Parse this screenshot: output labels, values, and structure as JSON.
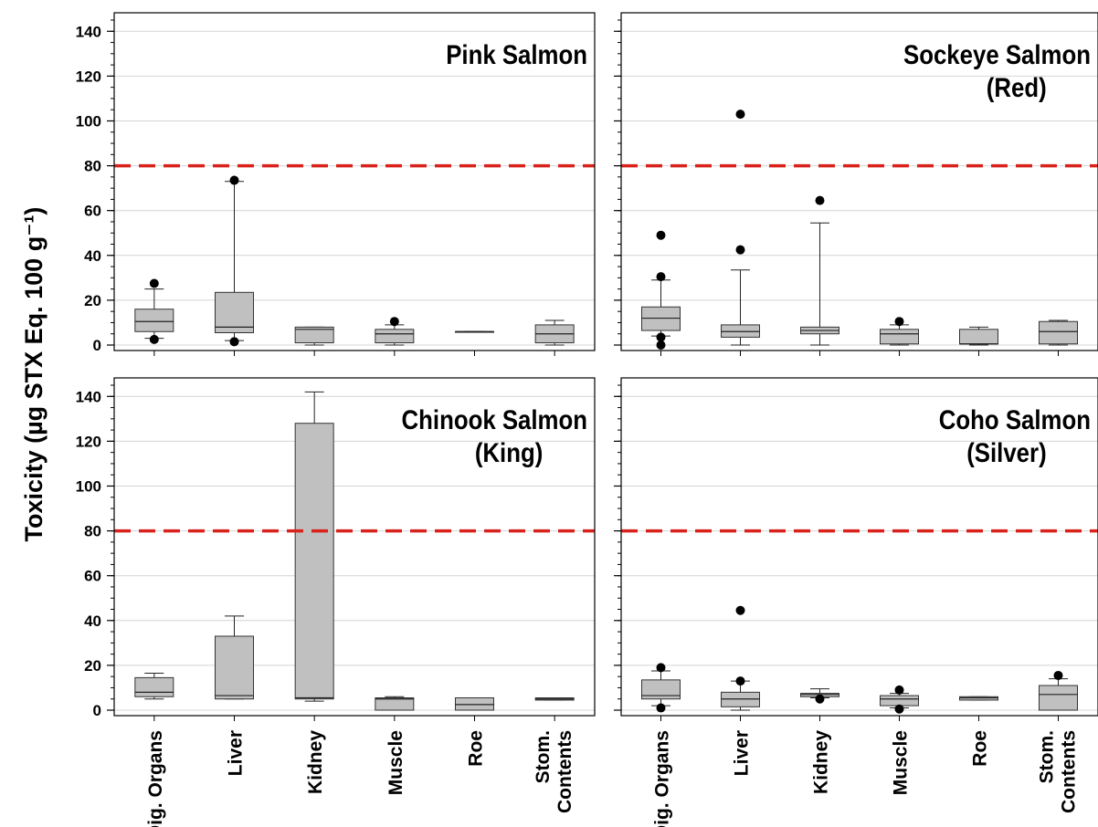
{
  "chart_data": {
    "type": "box",
    "ylabel": "Toxicity (µg STX Eq. 100 g⁻¹)",
    "ylim": [
      0,
      145
    ],
    "yticks": [
      0,
      20,
      40,
      60,
      80,
      100,
      120,
      140
    ],
    "categories": [
      "Dig. Organs",
      "Liver",
      "Kidney",
      "Muscle",
      "Roe",
      "Stom.\nContents"
    ],
    "reference_line": {
      "value": 80,
      "color": "#d9221c",
      "style": "dashed"
    },
    "grid": true,
    "box_fill": "#c0c0c0",
    "panels": [
      {
        "title": "Pink Salmon",
        "boxes": [
          {
            "category": "Dig. Organs",
            "whisker_low": 3,
            "q1": 6,
            "median": 10.5,
            "q3": 16,
            "whisker_high": 25,
            "outliers": [
              27.5,
              2.5
            ]
          },
          {
            "category": "Liver",
            "whisker_low": 2,
            "q1": 5.5,
            "median": 8,
            "q3": 23.5,
            "whisker_high": 73,
            "outliers": [
              73.5,
              1.5
            ]
          },
          {
            "category": "Kidney",
            "whisker_low": 0,
            "q1": 1,
            "median": 7,
            "q3": 8,
            "whisker_high": 8,
            "outliers": []
          },
          {
            "category": "Muscle",
            "whisker_low": 0,
            "q1": 1,
            "median": 5,
            "q3": 7,
            "whisker_high": 9,
            "outliers": [
              10.5
            ]
          },
          {
            "category": "Roe",
            "whisker_low": 6,
            "q1": 6,
            "median": 6,
            "q3": 6,
            "whisker_high": 6,
            "outliers": []
          },
          {
            "category": "Stom.\nContents",
            "whisker_low": 0,
            "q1": 1,
            "median": 5,
            "q3": 9,
            "whisker_high": 11,
            "outliers": []
          }
        ]
      },
      {
        "title": "Sockeye Salmon\n(Red)",
        "boxes": [
          {
            "category": "Dig. Organs",
            "whisker_low": 4,
            "q1": 6.5,
            "median": 12,
            "q3": 17,
            "whisker_high": 29,
            "outliers": [
              49,
              30.5,
              3.5,
              0
            ]
          },
          {
            "category": "Liver",
            "whisker_low": 0,
            "q1": 3.5,
            "median": 6,
            "q3": 9,
            "whisker_high": 33.5,
            "outliers": [
              103,
              42.5
            ]
          },
          {
            "category": "Kidney",
            "whisker_low": 0,
            "q1": 5,
            "median": 6.5,
            "q3": 8,
            "whisker_high": 54.5,
            "outliers": [
              64.5
            ]
          },
          {
            "category": "Muscle",
            "whisker_low": 0,
            "q1": 0.5,
            "median": 5,
            "q3": 7,
            "whisker_high": 9,
            "outliers": [
              10.5
            ]
          },
          {
            "category": "Roe",
            "whisker_low": 0,
            "q1": 0.5,
            "median": 0.5,
            "q3": 7,
            "whisker_high": 8,
            "outliers": []
          },
          {
            "category": "Stom.\nContents",
            "whisker_low": 0,
            "q1": 0.5,
            "median": 6,
            "q3": 10.5,
            "whisker_high": 11,
            "outliers": []
          }
        ]
      },
      {
        "title": "Chinook Salmon\n(King)",
        "boxes": [
          {
            "category": "Dig. Organs",
            "whisker_low": 5,
            "q1": 6,
            "median": 8,
            "q3": 14.5,
            "whisker_high": 16.5,
            "outliers": []
          },
          {
            "category": "Liver",
            "whisker_low": 5,
            "q1": 5,
            "median": 6.5,
            "q3": 33,
            "whisker_high": 42,
            "outliers": []
          },
          {
            "category": "Kidney",
            "whisker_low": 4,
            "q1": 5,
            "median": 5.5,
            "q3": 128,
            "whisker_high": 142,
            "outliers": []
          },
          {
            "category": "Muscle",
            "whisker_low": 0,
            "q1": 0,
            "median": 5,
            "q3": 5.5,
            "whisker_high": 6,
            "outliers": []
          },
          {
            "category": "Roe",
            "whisker_low": 0,
            "q1": 0,
            "median": 2.5,
            "q3": 5.5,
            "whisker_high": 5.5,
            "outliers": []
          },
          {
            "category": "Stom.\nContents",
            "whisker_low": 4.5,
            "q1": 4.5,
            "median": 5,
            "q3": 5.5,
            "whisker_high": 5.5,
            "outliers": []
          }
        ]
      },
      {
        "title": "Coho Salmon\n(Silver)",
        "boxes": [
          {
            "category": "Dig. Organs",
            "whisker_low": 2,
            "q1": 5,
            "median": 6.5,
            "q3": 13.5,
            "whisker_high": 17.5,
            "outliers": [
              19,
              1
            ]
          },
          {
            "category": "Liver",
            "whisker_low": 0,
            "q1": 1.5,
            "median": 5,
            "q3": 8,
            "whisker_high": 13,
            "outliers": [
              44.5,
              13
            ]
          },
          {
            "category": "Kidney",
            "whisker_low": 5.5,
            "q1": 6,
            "median": 7,
            "q3": 7.5,
            "whisker_high": 9.5,
            "outliers": [
              5
            ]
          },
          {
            "category": "Muscle",
            "whisker_low": 1,
            "q1": 2,
            "median": 5,
            "q3": 6.5,
            "whisker_high": 7.5,
            "outliers": [
              9,
              0.5
            ]
          },
          {
            "category": "Roe",
            "whisker_low": 4.5,
            "q1": 4.5,
            "median": 5.5,
            "q3": 6,
            "whisker_high": 6,
            "outliers": []
          },
          {
            "category": "Stom.\nContents",
            "whisker_low": 0,
            "q1": 0,
            "median": 7,
            "q3": 11,
            "whisker_high": 14,
            "outliers": [
              15.5
            ]
          }
        ]
      }
    ]
  }
}
